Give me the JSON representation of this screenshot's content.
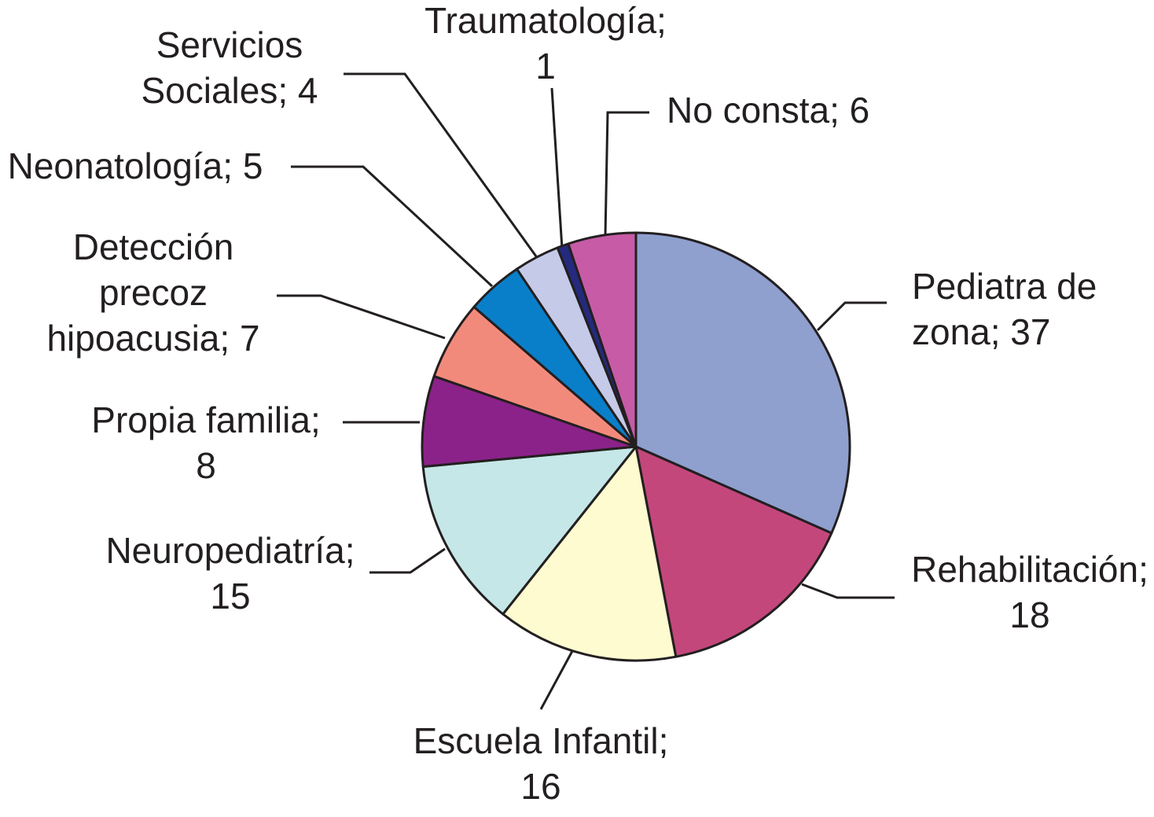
{
  "chart_data": {
    "type": "pie",
    "title": "",
    "start": "12 o'clock",
    "direction": "clockwise",
    "slices": [
      {
        "name": "Pediatra de zona",
        "value": 37,
        "color": "#8f9fce",
        "label": [
          "Pediatra de",
          "zona; 37"
        ]
      },
      {
        "name": "Rehabilitación",
        "value": 18,
        "color": "#c4477c",
        "label": [
          "Rehabilitación;",
          "18"
        ]
      },
      {
        "name": "Escuela Infantil",
        "value": 16,
        "color": "#fdfbcf",
        "label": [
          "Escuela Infantil;",
          "16"
        ]
      },
      {
        "name": "Neuropediatría",
        "value": 15,
        "color": "#c5e7e7",
        "label": [
          "Neuropediatría;",
          "15"
        ]
      },
      {
        "name": "Propia familia",
        "value": 8,
        "color": "#8b2289",
        "label": [
          "Propia familia;",
          "8"
        ]
      },
      {
        "name": "Detección precoz hipoacusia",
        "value": 7,
        "color": "#f28a7c",
        "label": [
          "Detección",
          "precoz",
          "hipoacusia; 7"
        ]
      },
      {
        "name": "Neonatología",
        "value": 5,
        "color": "#0a7fc9",
        "label": [
          "Neonatología; 5"
        ]
      },
      {
        "name": "Servicios Sociales",
        "value": 4,
        "color": "#c5cae9",
        "label": [
          "Servicios",
          "Sociales; 4"
        ]
      },
      {
        "name": "Traumatología",
        "value": 1,
        "color": "#252a7e",
        "label": [
          "Traumatología;",
          "1"
        ]
      },
      {
        "name": "No consta",
        "value": 6,
        "color": "#c75ba6",
        "label": [
          "No consta; 6"
        ]
      }
    ]
  }
}
